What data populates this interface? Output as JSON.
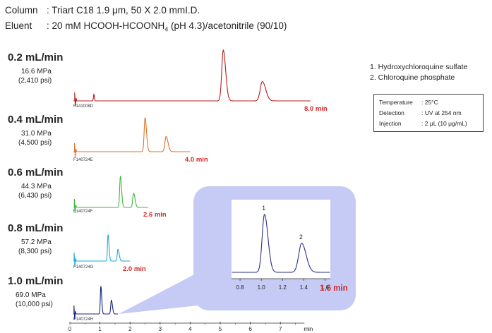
{
  "header": {
    "column_label": "Column",
    "column_value": ": Triart C18 1.9 μm, 50 X 2.0 mmI.D.",
    "eluent_label": "Eluent",
    "eluent_value_pre": ": 20 mM HCOOH-HCOONH",
    "eluent_sub": "4",
    "eluent_value_post": " (pH 4.3)/acetonitrile (90/10)"
  },
  "compounds": [
    "1.  Hydroxychloroquine sulfate",
    "2.  Chloroquine phosphate"
  ],
  "conditions": [
    {
      "key": "Temperature",
      "value": ": 25°C"
    },
    {
      "key": "Detection",
      "value": ": UV at 254 nm"
    },
    {
      "key": "Injection",
      "value": ": 2 μL (10 μg/mL)"
    }
  ],
  "chart_data": {
    "type": "line",
    "xlabel": "min",
    "x_ticks": [
      0,
      1,
      2,
      3,
      4,
      5,
      6,
      7
    ],
    "series": [
      {
        "name": "0.2 mL/min",
        "pressure_mpa": "16.6 MPa",
        "pressure_psi": "(2,410 psi)",
        "file_id": "F141008D",
        "color": "#b81c1c",
        "label_color": "#e8251b",
        "end_time": "8.0 min",
        "t_end": 8.0,
        "peaks": [
          5.1,
          6.4
        ],
        "heights": [
          1.0,
          0.38
        ],
        "widths": [
          0.05,
          0.07
        ]
      },
      {
        "name": "0.4 mL/min",
        "pressure_mpa": "31.0 MPa",
        "pressure_psi": "(4,500 psi)",
        "file_id": "F140724E",
        "color": "#e0702a",
        "label_color": "#f0a030",
        "end_time": "4.0 min",
        "t_end": 4.0,
        "peaks": [
          2.5,
          3.2
        ],
        "heights": [
          1.0,
          0.45
        ],
        "widths": [
          0.03,
          0.04
        ]
      },
      {
        "name": "0.6 mL/min",
        "pressure_mpa": "44.3 MPa",
        "pressure_psi": "(6,430 psi)",
        "file_id": "F140724F",
        "color": "#3cb83c",
        "label_color": "#6cc04a",
        "end_time": "2.6 min",
        "t_end": 2.6,
        "peaks": [
          1.68,
          2.12
        ],
        "heights": [
          1.0,
          0.45
        ],
        "widths": [
          0.025,
          0.03
        ]
      },
      {
        "name": "0.8 mL/min",
        "pressure_mpa": "57.2 MPa",
        "pressure_psi": "(8,300 psi)",
        "file_id": "F140724G",
        "color": "#1fa9d6",
        "label_color": "#1fa9d6",
        "end_time": "2.0 min",
        "t_end": 2.0,
        "peaks": [
          1.27,
          1.6
        ],
        "heights": [
          1.0,
          0.45
        ],
        "widths": [
          0.02,
          0.025
        ]
      },
      {
        "name": "1.0 mL/min",
        "pressure_mpa": "69.0 MPa",
        "pressure_psi": "(10,000 psi)",
        "file_id": "F140724H",
        "color": "#1a237e",
        "label_color": "#1e3d99",
        "end_time": "1.6 min",
        "t_end": 1.6,
        "peaks": [
          1.03,
          1.38
        ],
        "heights": [
          1.0,
          0.5
        ],
        "widths": [
          0.018,
          0.022
        ]
      }
    ],
    "zoom": {
      "x_ticks": [
        0.8,
        1.0,
        1.2,
        1.4,
        1.6
      ],
      "xlim": [
        0.72,
        1.65
      ],
      "end_time": "1.6 min",
      "peak_labels": [
        "1",
        "2"
      ],
      "peaks": [
        1.03,
        1.38
      ],
      "heights": [
        1.0,
        0.5
      ]
    }
  }
}
